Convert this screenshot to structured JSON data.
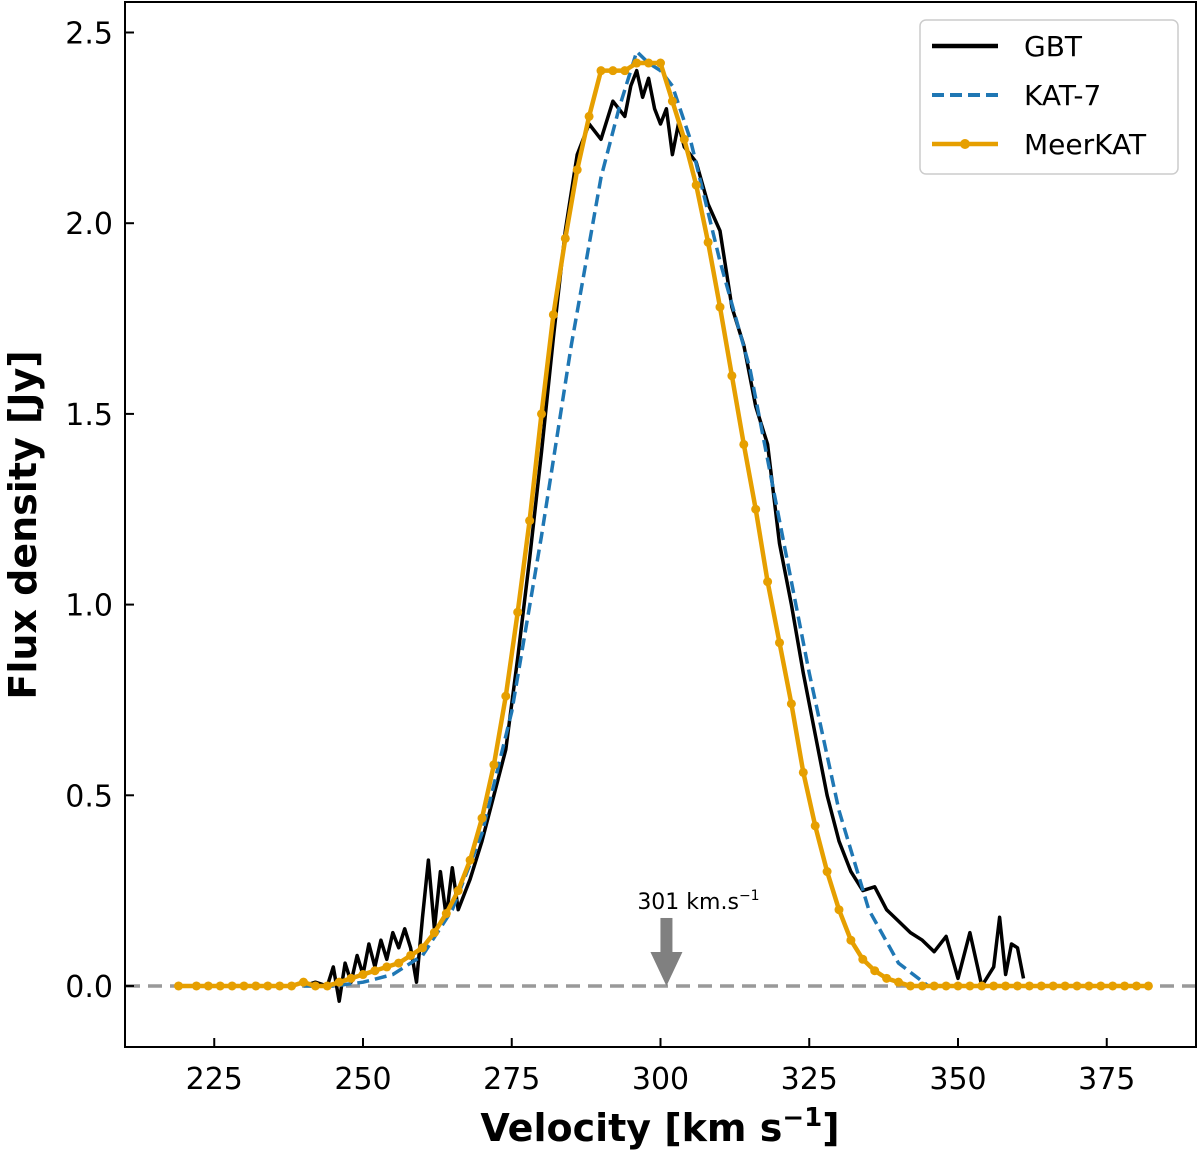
{
  "chart_data": {
    "type": "line",
    "xlabel": "Velocity [km s",
    "xlabel_sup": "−1",
    "xlabel_end": "]",
    "ylabel": "Flux density [Jy]",
    "xlim": [
      210,
      390
    ],
    "ylim": [
      -0.16,
      2.58
    ],
    "xticks": [
      225,
      250,
      275,
      300,
      325,
      350,
      375
    ],
    "yticks": [
      0.0,
      0.5,
      1.0,
      1.5,
      2.0,
      2.5
    ],
    "xtick_labels": [
      "225",
      "250",
      "275",
      "300",
      "325",
      "350",
      "375"
    ],
    "ytick_labels": [
      "0.0",
      "0.5",
      "1.0",
      "1.5",
      "2.0",
      "2.5"
    ],
    "grid": false,
    "legend_position": "top-right",
    "zero_line": {
      "y": 0.0,
      "color": "#999999"
    },
    "annotation": {
      "text": "301 km.s",
      "sup": "−1",
      "x": 301,
      "arrow_color": "#808080"
    },
    "series": [
      {
        "name": "GBT",
        "color": "#000000",
        "style": "solid",
        "x": [
          240,
          242,
          244,
          245,
          246,
          247,
          248,
          249,
          250,
          251,
          252,
          253,
          254,
          255,
          256,
          257,
          258,
          259,
          260,
          261,
          262,
          263,
          264,
          265,
          266,
          268,
          270,
          272,
          274,
          276,
          278,
          280,
          282,
          284,
          286,
          288,
          290,
          292,
          294,
          295,
          296,
          297,
          298,
          299,
          300,
          301,
          302,
          303,
          304,
          306,
          308,
          310,
          312,
          314,
          316,
          318,
          320,
          322,
          324,
          326,
          328,
          330,
          332,
          334,
          336,
          338,
          340,
          342,
          344,
          346,
          348,
          350,
          352,
          354,
          356,
          357,
          358,
          359,
          360,
          361
        ],
        "y": [
          0.0,
          0.01,
          0.0,
          0.05,
          -0.04,
          0.06,
          0.01,
          0.08,
          0.03,
          0.11,
          0.05,
          0.12,
          0.07,
          0.14,
          0.1,
          0.15,
          0.1,
          0.01,
          0.18,
          0.33,
          0.15,
          0.3,
          0.18,
          0.31,
          0.2,
          0.28,
          0.38,
          0.5,
          0.62,
          0.86,
          1.12,
          1.4,
          1.7,
          1.98,
          2.18,
          2.26,
          2.22,
          2.32,
          2.28,
          2.36,
          2.4,
          2.33,
          2.38,
          2.3,
          2.26,
          2.3,
          2.18,
          2.26,
          2.2,
          2.16,
          2.05,
          1.98,
          1.78,
          1.68,
          1.52,
          1.42,
          1.16,
          1.0,
          0.82,
          0.66,
          0.5,
          0.38,
          0.3,
          0.25,
          0.26,
          0.2,
          0.17,
          0.14,
          0.12,
          0.09,
          0.13,
          0.02,
          0.14,
          0.0,
          0.05,
          0.18,
          0.03,
          0.11,
          0.1,
          0.02
        ]
      },
      {
        "name": "KAT-7",
        "color": "#1f77b4",
        "style": "dashed",
        "x": [
          240,
          245,
          250,
          255,
          260,
          265,
          270,
          275,
          280,
          285,
          290,
          293,
          296,
          298,
          300,
          302,
          305,
          310,
          315,
          320,
          325,
          330,
          335,
          340,
          345,
          350,
          355,
          360
        ],
        "y": [
          0.0,
          0.0,
          0.01,
          0.03,
          0.08,
          0.2,
          0.4,
          0.72,
          1.18,
          1.68,
          2.12,
          2.3,
          2.45,
          2.42,
          2.4,
          2.36,
          2.22,
          1.9,
          1.62,
          1.22,
          0.82,
          0.46,
          0.2,
          0.06,
          0.0,
          0.0,
          0.0,
          0.0
        ]
      },
      {
        "name": "MeerKAT",
        "color": "#e69f00",
        "style": "solid-markers",
        "x": [
          219,
          222,
          224,
          226,
          228,
          230,
          232,
          234,
          236,
          238,
          240,
          242,
          244,
          246,
          248,
          250,
          252,
          254,
          256,
          258,
          260,
          262,
          264,
          266,
          268,
          270,
          272,
          274,
          276,
          278,
          280,
          282,
          284,
          286,
          288,
          290,
          292,
          294,
          296,
          298,
          300,
          302,
          304,
          306,
          308,
          310,
          312,
          314,
          316,
          318,
          320,
          322,
          324,
          326,
          328,
          330,
          332,
          334,
          336,
          338,
          340,
          342,
          344,
          346,
          348,
          350,
          352,
          354,
          356,
          358,
          360,
          362,
          364,
          366,
          368,
          370,
          372,
          374,
          376,
          378,
          380,
          382
        ],
        "y": [
          0.0,
          0.0,
          0.0,
          0.0,
          0.0,
          0.0,
          0.0,
          0.0,
          0.0,
          0.0,
          0.01,
          0.0,
          0.0,
          0.01,
          0.02,
          0.03,
          0.04,
          0.05,
          0.06,
          0.08,
          0.1,
          0.14,
          0.19,
          0.25,
          0.33,
          0.44,
          0.58,
          0.76,
          0.98,
          1.22,
          1.5,
          1.76,
          1.96,
          2.14,
          2.28,
          2.4,
          2.4,
          2.4,
          2.42,
          2.42,
          2.42,
          2.32,
          2.22,
          2.1,
          1.95,
          1.78,
          1.6,
          1.42,
          1.25,
          1.06,
          0.9,
          0.74,
          0.56,
          0.42,
          0.3,
          0.2,
          0.12,
          0.07,
          0.04,
          0.02,
          0.01,
          0.0,
          0.0,
          0.0,
          0.0,
          0.0,
          0.0,
          0.0,
          0.0,
          0.0,
          0.0,
          0.0,
          0.0,
          0.0,
          0.0,
          0.0,
          0.0,
          0.0,
          0.0,
          0.0,
          0.0,
          0.0
        ]
      }
    ]
  }
}
